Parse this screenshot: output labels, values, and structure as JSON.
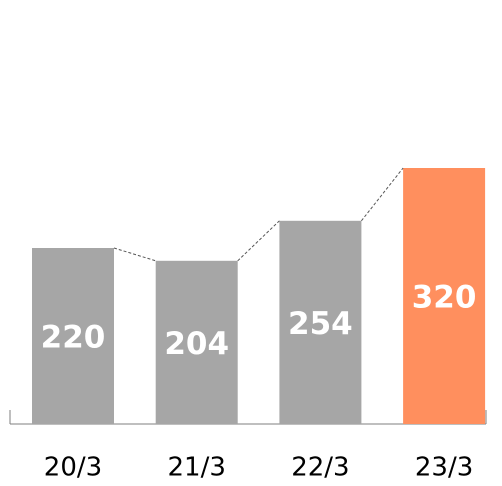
{
  "chart_data": {
    "type": "bar",
    "categories": [
      "20/3",
      "21/3",
      "22/3",
      "23/3"
    ],
    "values": [
      220,
      204,
      254,
      320
    ],
    "colors": [
      "#a6a6a6",
      "#a6a6a6",
      "#a6a6a6",
      "#ff8f5e"
    ],
    "connectors": true
  }
}
